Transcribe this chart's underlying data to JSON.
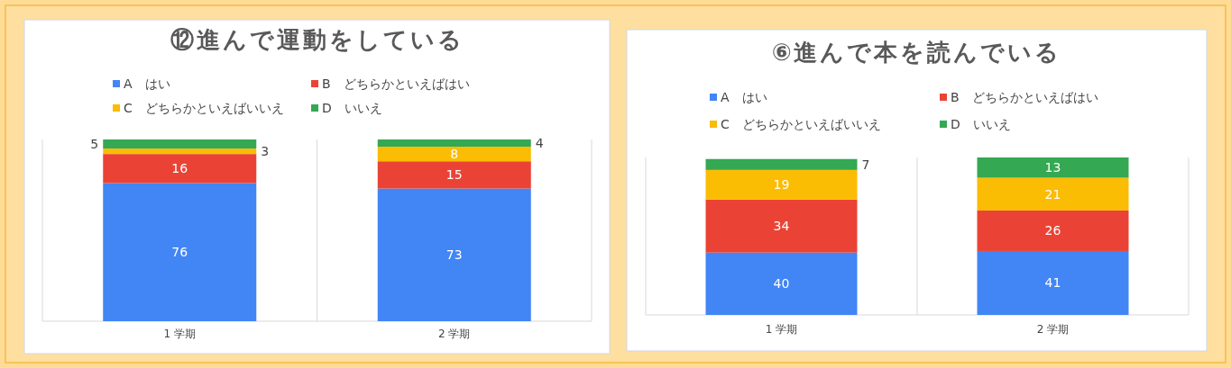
{
  "chart_data": [
    {
      "type": "bar",
      "stacked": true,
      "title": "⑫進んで運動をしている",
      "categories": [
        "1 学期",
        "2 学期"
      ],
      "ylim": [
        0,
        100
      ],
      "data_labels": true,
      "legend": "top",
      "grid": "x",
      "series": [
        {
          "name": "A　はい",
          "color": "#4285f4",
          "values": [
            76,
            73
          ]
        },
        {
          "name": "B　どちらかといえばはい",
          "color": "#ea4335",
          "values": [
            16,
            15
          ]
        },
        {
          "name": "C　どちらかといえばいいえ",
          "color": "#fbbc04",
          "values": [
            3,
            8
          ]
        },
        {
          "name": "D　いいえ",
          "color": "#34a853",
          "values": [
            5,
            4
          ]
        }
      ]
    },
    {
      "type": "bar",
      "stacked": true,
      "title": "⑥進んで本を読んでいる",
      "categories": [
        "1 学期",
        "2 学期"
      ],
      "ylim": [
        0,
        101
      ],
      "data_labels": true,
      "legend": "top",
      "grid": "x",
      "series": [
        {
          "name": "A　はい",
          "color": "#4285f4",
          "values": [
            40,
            41
          ]
        },
        {
          "name": "B　どちらかといえばはい",
          "color": "#ea4335",
          "values": [
            34,
            26
          ]
        },
        {
          "name": "C　どちらかといえばいいえ",
          "color": "#fbbc04",
          "values": [
            19,
            21
          ]
        },
        {
          "name": "D　いいえ",
          "color": "#34a853",
          "values": [
            7,
            13
          ]
        }
      ]
    }
  ]
}
